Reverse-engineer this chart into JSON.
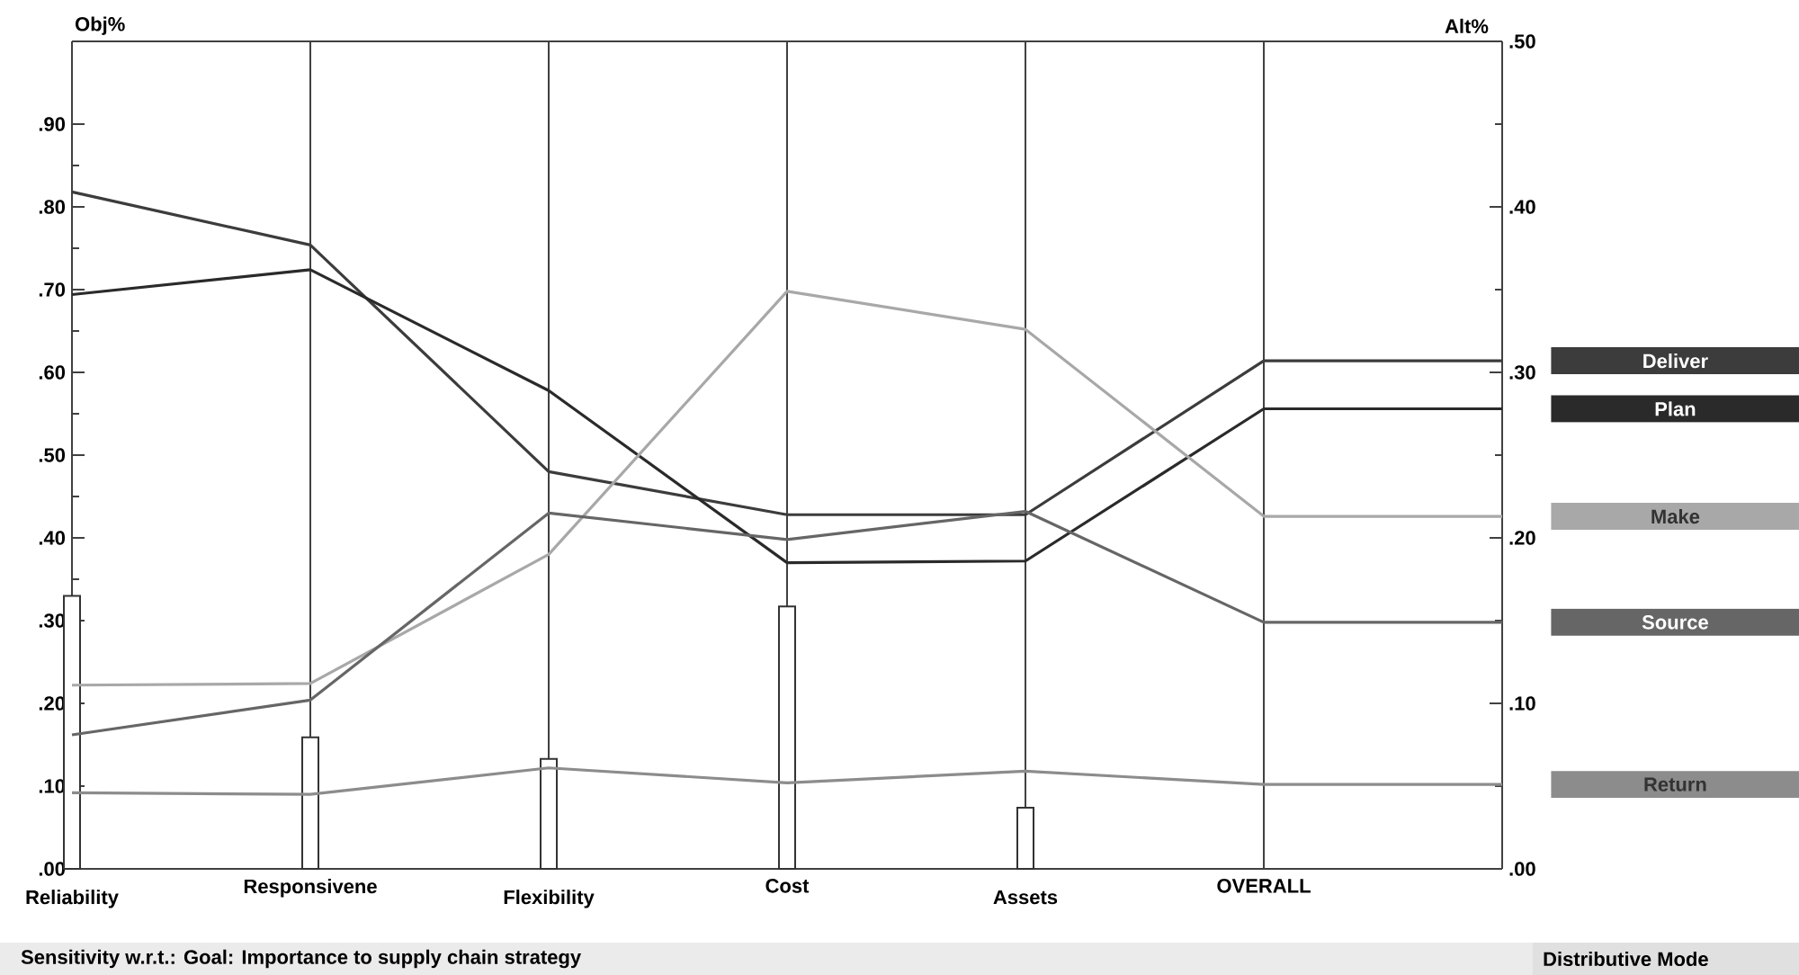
{
  "chart_data": {
    "type": "line",
    "ylabel": "Obj%",
    "y2label": "Alt%",
    "categories": [
      "Reliability",
      "Responsivene",
      "Flexibility",
      "Cost",
      "Assets",
      "OVERALL",
      null
    ],
    "series": [
      {
        "type": "bar",
        "color": "#ffffff",
        "values": [
          0.33,
          0.159,
          0.133,
          0.317,
          0.074,
          null,
          null
        ]
      },
      {
        "name": "Deliver",
        "axis": "y2",
        "color": "#3c3c3c",
        "values": [
          0.409,
          0.377,
          0.24,
          0.214,
          0.214,
          0.307,
          0.307
        ]
      },
      {
        "name": "Plan",
        "axis": "y2",
        "color": "#2a2a2a",
        "values": [
          0.347,
          0.362,
          0.289,
          0.185,
          0.186,
          0.278,
          0.278
        ]
      },
      {
        "name": "Make",
        "axis": "y2",
        "color": "#a8a8a8",
        "values": [
          0.111,
          0.112,
          0.19,
          0.349,
          0.326,
          0.213,
          0.213
        ]
      },
      {
        "name": "Source",
        "axis": "y2",
        "color": "#666666",
        "values": [
          0.081,
          0.102,
          0.215,
          0.199,
          0.216,
          0.149,
          0.149
        ]
      },
      {
        "name": "Return",
        "axis": "y2",
        "color": "#8c8c8c",
        "values": [
          0.046,
          0.045,
          0.061,
          0.052,
          0.059,
          0.051,
          0.051
        ]
      }
    ],
    "ylim": [
      0,
      1.0
    ],
    "yticks": [
      {
        "value": 0,
        "label": ".00"
      },
      {
        "value": 0.1,
        "label": ".10"
      },
      {
        "value": 0.2,
        "label": ".20"
      },
      {
        "value": 0.3,
        "label": ".30"
      },
      {
        "value": 0.4,
        "label": ".40"
      },
      {
        "value": 0.5,
        "label": ".50"
      },
      {
        "value": 0.6,
        "label": ".60"
      },
      {
        "value": 0.7,
        "label": ".70"
      },
      {
        "value": 0.8,
        "label": ".80"
      },
      {
        "value": 0.9,
        "label": ".90"
      }
    ],
    "y2lim": [
      0,
      0.5
    ],
    "y2ticks": [
      {
        "value": 0,
        "label": ".00"
      },
      {
        "value": 0.1,
        "label": ".10"
      },
      {
        "value": 0.2,
        "label": ".20"
      },
      {
        "value": 0.3,
        "label": ".30"
      },
      {
        "value": 0.4,
        "label": ".40"
      },
      {
        "value": 0.5,
        "label": ".50"
      }
    ],
    "grid": "x",
    "legend": "right",
    "annotations": [
      "Sensitivity w.r.t.: Goal: Importance to supply chain strategy",
      "Distributive Mode"
    ]
  }
}
